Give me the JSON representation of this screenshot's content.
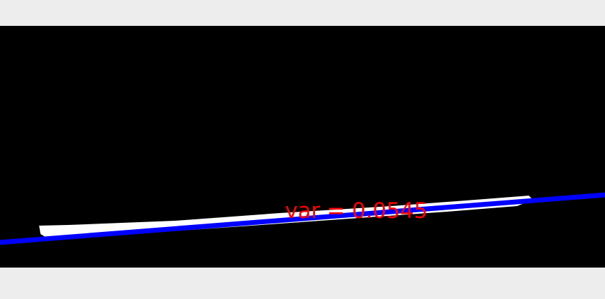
{
  "annotation": {
    "text": "var = 0.0545"
  },
  "colors": {
    "background": "#ededed",
    "image_background": "#000000",
    "mask": "#ffffff",
    "fit_line": "#0000ff",
    "annotation_text": "#ff0000"
  }
}
